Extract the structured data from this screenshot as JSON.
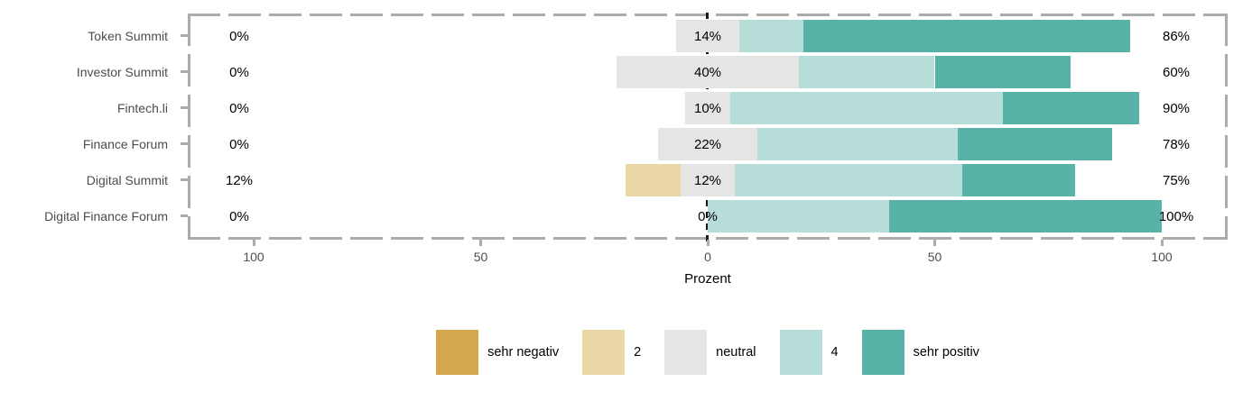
{
  "chart_data": {
    "type": "diverging_stacked_bar",
    "title": "",
    "xlabel": "Prozent",
    "x_ticks": [
      {
        "value": -100,
        "label": "100"
      },
      {
        "value": -50,
        "label": "50"
      },
      {
        "value": 0,
        "label": "0"
      },
      {
        "value": 50,
        "label": "50"
      },
      {
        "value": 100,
        "label": "100"
      }
    ],
    "x_range": [
      -114.5,
      114.5
    ],
    "grid": false,
    "legend_position": "bottom",
    "series_keys": [
      "sehr negativ",
      "2",
      "neutral",
      "4",
      "sehr positiv"
    ],
    "legend": [
      {
        "key": "sehr negativ",
        "color": "#d3a74e"
      },
      {
        "key": "2",
        "color": "#ebd8a7"
      },
      {
        "key": "neutral",
        "color": "#e5e5e5"
      },
      {
        "key": "4",
        "color": "#b7ddd8"
      },
      {
        "key": "sehr positiv",
        "color": "#58b2a8"
      }
    ],
    "rows": [
      {
        "category": "Token Summit",
        "values": {
          "sehr negativ": 0,
          "2": 0,
          "neutral": 14,
          "4": 14,
          "sehr positiv": 72
        },
        "left_label": "0%",
        "center_label": "14%",
        "right_label": "86%"
      },
      {
        "category": "Investor Summit",
        "values": {
          "sehr negativ": 0,
          "2": 0,
          "neutral": 40,
          "4": 30,
          "sehr positiv": 30
        },
        "left_label": "0%",
        "center_label": "40%",
        "right_label": "60%"
      },
      {
        "category": "Fintech.li",
        "values": {
          "sehr negativ": 0,
          "2": 0,
          "neutral": 10,
          "4": 60,
          "sehr positiv": 30
        },
        "left_label": "0%",
        "center_label": "10%",
        "right_label": "90%"
      },
      {
        "category": "Finance Forum",
        "values": {
          "sehr negativ": 0,
          "2": 0,
          "neutral": 22,
          "4": 44,
          "sehr positiv": 34
        },
        "left_label": "0%",
        "center_label": "22%",
        "right_label": "78%"
      },
      {
        "category": "Digital Summit",
        "values": {
          "sehr negativ": 0,
          "2": 12,
          "neutral": 12,
          "4": 50,
          "sehr positiv": 25
        },
        "left_label": "12%",
        "center_label": "12%",
        "right_label": "75%"
      },
      {
        "category": "Digital Finance Forum",
        "values": {
          "sehr negativ": 0,
          "2": 0,
          "neutral": 0,
          "4": 40,
          "sehr positiv": 60
        },
        "left_label": "0%",
        "center_label": "0%",
        "right_label": "100%"
      }
    ],
    "colors": {
      "zero_line": "#1a1a1a",
      "panel_border": "#ababab",
      "category_text": "#4d4d4d",
      "axis_text": "#4d4d4d",
      "value_text": "#000000"
    }
  }
}
